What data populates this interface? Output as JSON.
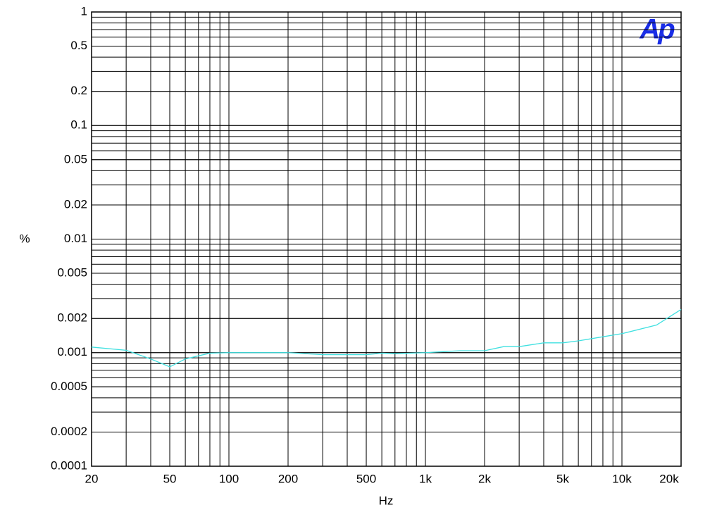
{
  "chart_data": {
    "type": "line",
    "logo": "Ap",
    "xlabel": "Hz",
    "ylabel": "%",
    "x": [
      20,
      30,
      40,
      50,
      60,
      80,
      100,
      200,
      300,
      500,
      600,
      700,
      1000,
      1500,
      2000,
      2500,
      3000,
      4000,
      5000,
      6000,
      8000,
      10000,
      15000,
      20000
    ],
    "series": [
      {
        "color": "#3fe0e0",
        "values": [
          0.00112,
          0.00105,
          0.00088,
          0.00075,
          0.00088,
          0.00099,
          0.001,
          0.001,
          0.00096,
          0.00096,
          0.00099,
          0.00098,
          0.001,
          0.00104,
          0.00104,
          0.00113,
          0.00113,
          0.00122,
          0.00122,
          0.00127,
          0.00138,
          0.00147,
          0.00175,
          0.0024
        ]
      }
    ],
    "xlim": [
      20,
      20000
    ],
    "ylim": [
      0.0001,
      1
    ],
    "xlog": true,
    "ylog": true,
    "grid": true,
    "minor_grid": true,
    "xticks": [
      20,
      50,
      100,
      200,
      500,
      {
        "value": 1000,
        "label": "1k"
      },
      {
        "value": 2000,
        "label": "2k"
      },
      {
        "value": 5000,
        "label": "5k"
      },
      {
        "value": 10000,
        "label": "10k"
      },
      {
        "value": 20000,
        "label": "20k"
      }
    ],
    "yticks": [
      1,
      0.5,
      0.2,
      0.1,
      0.05,
      0.02,
      0.01,
      0.005,
      0.002,
      0.001,
      0.0005,
      0.0002,
      0.0001
    ]
  }
}
